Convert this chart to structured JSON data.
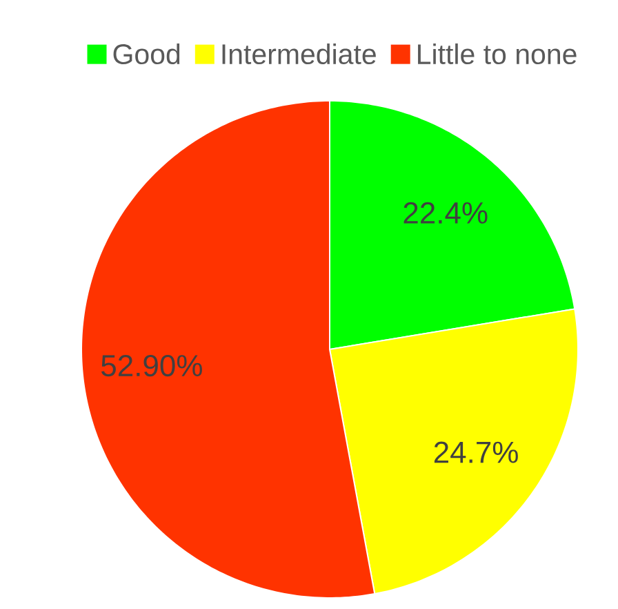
{
  "chart_data": {
    "type": "pie",
    "categories": [
      "Good",
      "Intermediate",
      "Little to none"
    ],
    "values": [
      22.4,
      24.7,
      52.9
    ],
    "colors": [
      "#00ff00",
      "#ffff00",
      "#ff3300"
    ],
    "value_labels": [
      "22.4%",
      "24.7%",
      "52.90%"
    ],
    "legend": "top"
  }
}
